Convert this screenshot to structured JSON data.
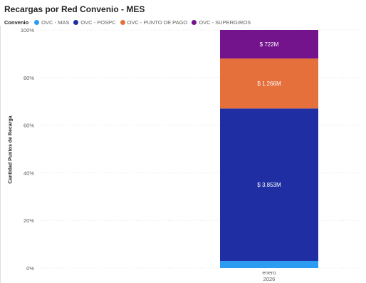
{
  "chart_data": {
    "type": "bar",
    "stacked": "100%",
    "title": "Recargas por Red Convenio - MES",
    "legend_title": "Convenio",
    "legend_position": "top-left",
    "ylabel": "Cantidad Puntos de Recarga",
    "xlabel": "",
    "ylim": [
      0,
      100
    ],
    "y_ticks": [
      "0%",
      "20%",
      "40%",
      "60%",
      "80%",
      "100%"
    ],
    "categories": [
      "enero 2026"
    ],
    "category_lines": [
      [
        "enero",
        "2026"
      ]
    ],
    "series": [
      {
        "name": "OVC - MAS",
        "color": "#2b9cf2",
        "values": [
          3
        ],
        "label": ""
      },
      {
        "name": "OVC - POSPC",
        "color": "#1f2fa3",
        "values": [
          64
        ],
        "label": "$ 3.853M"
      },
      {
        "name": "OVC - PUNTO DE PAGO",
        "color": "#e5703c",
        "values": [
          21
        ],
        "label": "$ 1.266M"
      },
      {
        "name": "OVC - SUPERGIROS",
        "color": "#73148c",
        "values": [
          12
        ],
        "label": "$ 722M"
      }
    ],
    "grid": true
  }
}
